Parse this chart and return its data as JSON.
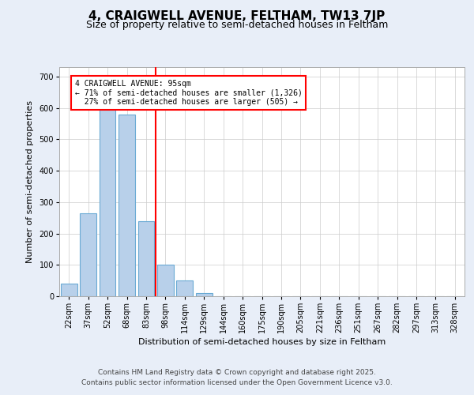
{
  "title": "4, CRAIGWELL AVENUE, FELTHAM, TW13 7JP",
  "subtitle": "Size of property relative to semi-detached houses in Feltham",
  "xlabel": "Distribution of semi-detached houses by size in Feltham",
  "ylabel": "Number of semi-detached properties",
  "bar_labels": [
    "22sqm",
    "37sqm",
    "52sqm",
    "68sqm",
    "83sqm",
    "98sqm",
    "114sqm",
    "129sqm",
    "144sqm",
    "160sqm",
    "175sqm",
    "190sqm",
    "205sqm",
    "221sqm",
    "236sqm",
    "251sqm",
    "267sqm",
    "282sqm",
    "297sqm",
    "313sqm",
    "328sqm"
  ],
  "bar_heights": [
    40,
    265,
    620,
    580,
    240,
    100,
    50,
    10,
    0,
    0,
    0,
    0,
    0,
    0,
    0,
    0,
    0,
    0,
    0,
    0,
    0
  ],
  "bar_color": "#b8d0ea",
  "bar_edge_color": "#6aaad4",
  "red_line_bin_index": 5,
  "red_line_color": "red",
  "annotation_text": "4 CRAIGWELL AVENUE: 95sqm\n← 71% of semi-detached houses are smaller (1,326)\n  27% of semi-detached houses are larger (505) →",
  "ylim": [
    0,
    730
  ],
  "yticks": [
    0,
    100,
    200,
    300,
    400,
    500,
    600,
    700
  ],
  "footer_line1": "Contains HM Land Registry data © Crown copyright and database right 2025.",
  "footer_line2": "Contains public sector information licensed under the Open Government Licence v3.0.",
  "bg_color": "#e8eef8",
  "plot_bg_color": "#ffffff",
  "title_fontsize": 11,
  "subtitle_fontsize": 9,
  "axis_label_fontsize": 8,
  "tick_fontsize": 7,
  "annotation_fontsize": 7,
  "footer_fontsize": 6.5
}
